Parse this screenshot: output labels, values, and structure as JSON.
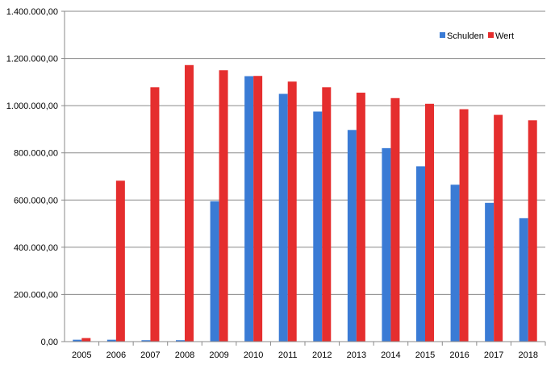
{
  "chart_data": {
    "type": "bar",
    "categories": [
      "2005",
      "2006",
      "2007",
      "2008",
      "2009",
      "2010",
      "2011",
      "2012",
      "2013",
      "2014",
      "2015",
      "2016",
      "2017",
      "2018"
    ],
    "series": [
      {
        "name": "Schulden",
        "color": "#3a7bd5",
        "values": [
          8000,
          8000,
          6000,
          6000,
          595000,
          1125000,
          1050000,
          975000,
          897000,
          820000,
          743000,
          665000,
          588000,
          523000
        ]
      },
      {
        "name": "Wert",
        "color": "#e52e2e",
        "values": [
          15000,
          682000,
          1078000,
          1172000,
          1150000,
          1126000,
          1102000,
          1078000,
          1055000,
          1032000,
          1008000,
          985000,
          961000,
          938000
        ]
      }
    ],
    "y_ticks": [
      "0,00",
      "200.000,00",
      "400.000,00",
      "600.000,00",
      "800.000,00",
      "1.000.000,00",
      "1.200.000,00",
      "1.400.000,00"
    ],
    "ylim": [
      0,
      1400000
    ],
    "grid": true,
    "legend_position": "top-right",
    "title": "",
    "xlabel": "",
    "ylabel": ""
  }
}
